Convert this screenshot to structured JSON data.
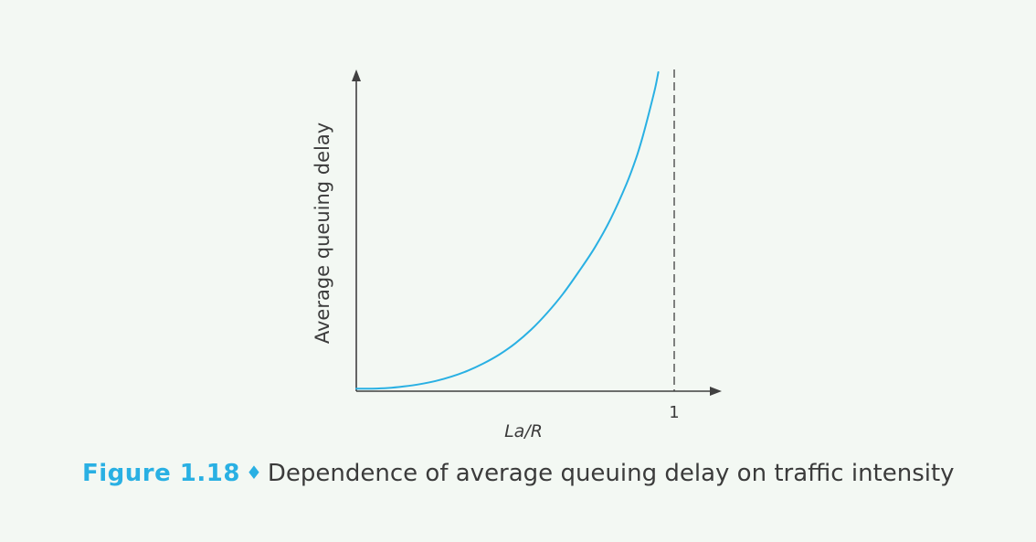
{
  "chart_data": {
    "type": "line",
    "title": "",
    "xlabel": "La/R",
    "ylabel": "Average queuing delay",
    "x_ticks": [
      {
        "value": 1,
        "label": "1"
      }
    ],
    "xlim": [
      0,
      1.15
    ],
    "ylim": [
      0,
      100
    ],
    "reference_lines": [
      {
        "orientation": "vertical",
        "x": 1,
        "style": "dashed"
      }
    ],
    "series": [
      {
        "x": [
          0,
          0.05,
          0.1,
          0.15,
          0.2,
          0.25,
          0.3,
          0.35,
          0.4,
          0.45,
          0.5,
          0.55,
          0.6,
          0.65,
          0.7,
          0.75,
          0.8,
          0.85,
          0.88,
          0.9,
          0.92,
          0.94,
          0.95
        ],
        "y": [
          0.8,
          0.8,
          1.0,
          1.5,
          2.2,
          3.2,
          4.6,
          6.4,
          8.7,
          11.5,
          15.0,
          19.3,
          24.5,
          30.5,
          37.5,
          45.0,
          54.0,
          65.0,
          73.0,
          79.5,
          87.0,
          95.0,
          100.0
        ],
        "color": "#29b0e3"
      }
    ],
    "grid": false,
    "legend": "none"
  },
  "caption": {
    "figure_label": "Figure 1.18",
    "separator": "♦",
    "text": "Dependence of average queuing delay on traffic intensity"
  },
  "colors": {
    "curve": "#29b0e3",
    "axes": "#404040",
    "accent": "#29b0e3",
    "background": "#f3f8f3"
  }
}
